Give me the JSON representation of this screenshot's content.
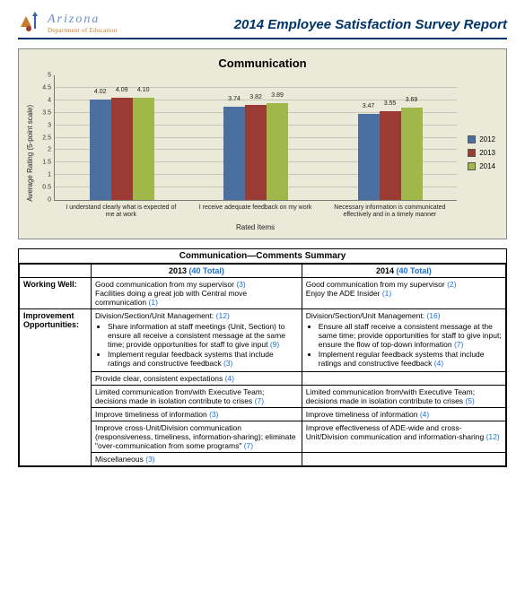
{
  "header": {
    "logo_name": "Arizona",
    "logo_dept": "Department of Education",
    "title": "2014 Employee Satisfaction Survey Report"
  },
  "chart": {
    "type": "bar",
    "title": "Communication",
    "ylabel": "Average Rating (5-point scale)",
    "xlabel": "Rated Items",
    "ylim": [
      0,
      5
    ],
    "ytick_step": 0.5,
    "background_color": "#ebe9d8",
    "grid_color": "#c8c6b6",
    "series": [
      {
        "name": "2012",
        "color": "#4a6fa0"
      },
      {
        "name": "2013",
        "color": "#9c3b34"
      },
      {
        "name": "2014",
        "color": "#a0b84a"
      }
    ],
    "categories": [
      "I understand clearly what is expected of me at work",
      "I receive adequate feedback on my work",
      "Necessary information is communicated effectively and in a timely manner"
    ],
    "values": [
      [
        4.02,
        4.09,
        4.1
      ],
      [
        3.74,
        3.82,
        3.89
      ],
      [
        3.47,
        3.55,
        3.69
      ]
    ],
    "bar_label_fontsize": 7,
    "title_fontsize": 13,
    "axis_fontsize": 8
  },
  "comments": {
    "title": "Communication—Comments Summary",
    "year_cols": [
      {
        "year": "2013",
        "total_text": "(40 Total)"
      },
      {
        "year": "2014",
        "total_text": "(40 Total)"
      }
    ],
    "rows": [
      {
        "label": "Working Well:",
        "cells": [
          {
            "lines": [
              {
                "text": "Good communication from my supervisor",
                "count": "(3)"
              },
              {
                "text": "Facilities doing a great job with Central move communication",
                "count": "(1)"
              }
            ]
          },
          {
            "lines": [
              {
                "text": "Good communication from my supervisor",
                "count": "(2)"
              },
              {
                "text": "Enjoy the ADE Insider",
                "count": "(1)"
              }
            ]
          }
        ]
      },
      {
        "label": "Improvement Opportunities:",
        "cells": [
          {
            "lead": {
              "text": "Division/Section/Unit Management:",
              "count": "(12)"
            },
            "bullets": [
              {
                "text": "Share information at staff meetings (Unit, Section) to ensure all receive a consistent message at the same time; provide opportunities for staff to give input",
                "count": "(9)"
              },
              {
                "text": "Implement regular feedback systems that include ratings and constructive feedback",
                "count": "(3)"
              }
            ]
          },
          {
            "lead": {
              "text": "Division/Section/Unit Management:",
              "count": "(16)"
            },
            "bullets": [
              {
                "text": "Ensure all staff receive a consistent message at the same time; provide opportunities for staff to give input; ensure the flow of top-down information",
                "count": "(7)"
              },
              {
                "text": "Implement regular feedback systems that include ratings and constructive feedback",
                "count": "(4)"
              }
            ]
          }
        ]
      },
      {
        "label": "",
        "cells": [
          {
            "lines": [
              {
                "text": "Provide clear, consistent expectations",
                "count": "(4)"
              }
            ]
          },
          {
            "lines": []
          }
        ]
      },
      {
        "label": "",
        "cells": [
          {
            "lines": [
              {
                "text": "Limited communication from/with Executive Team; decisions made in isolation contribute to crises",
                "count": "(7)"
              }
            ]
          },
          {
            "lines": [
              {
                "text": "Limited communication from/with Executive Team; decisions made in isolation contribute to crises",
                "count": "(5)"
              }
            ]
          }
        ]
      },
      {
        "label": "",
        "cells": [
          {
            "lines": [
              {
                "text": "Improve timeliness of information",
                "count": "(3)"
              }
            ]
          },
          {
            "lines": [
              {
                "text": "Improve timeliness of information",
                "count": "(4)"
              }
            ]
          }
        ]
      },
      {
        "label": "",
        "cells": [
          {
            "lines": [
              {
                "text": "Improve cross-Unit/Division communication (responsiveness, timeliness, information-sharing); eliminate \"over-communication from some programs\"",
                "count": "(7)"
              }
            ]
          },
          {
            "lines": [
              {
                "text": "Improve effectiveness of ADE-wide and cross-Unit/Division communication and information-sharing",
                "count": "(12)"
              }
            ]
          }
        ]
      },
      {
        "label": "",
        "cells": [
          {
            "lines": [
              {
                "text": "Miscellaneous",
                "count": "(3)"
              }
            ]
          },
          {
            "lines": []
          }
        ]
      }
    ]
  }
}
